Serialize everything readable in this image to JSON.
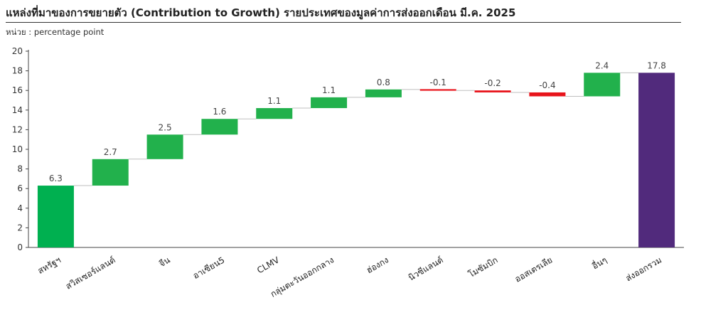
{
  "header": {
    "title": "แหล่งที่มาของการขยายตัว (Contribution to Growth) รายประเทศของมูลค่าการส่งออกเดือน มี.ค. 2025",
    "unit": "หน่วย : percentage point"
  },
  "chart_data": {
    "type": "bar",
    "subtype": "waterfall",
    "title": "แหล่งที่มาของการขยายตัว (Contribution to Growth) รายประเทศของมูลค่าการส่งออกเดือน มี.ค. 2025",
    "ylabel": "",
    "xlabel": "",
    "ylim": [
      0,
      20
    ],
    "yticks": [
      0,
      2,
      4,
      6,
      8,
      10,
      12,
      14,
      16,
      18,
      20
    ],
    "grid": false,
    "categories": [
      "สหรัฐฯ",
      "สวิสเซอร์แลนด์",
      "จีน",
      "อาเซียน5",
      "CLMV",
      "กลุ่มตะวันออกกลาง",
      "ฮ่องกง",
      "นิวซีแลนด์",
      "โมซัมบิก",
      "ออสเตรเลีย",
      "อื่นๆ",
      "ส่งออกรวม"
    ],
    "values": [
      6.3,
      2.7,
      2.5,
      1.6,
      1.1,
      1.1,
      0.8,
      -0.1,
      -0.2,
      -0.4,
      2.4,
      17.8
    ],
    "labels": [
      "6.3",
      "2.7",
      "2.5",
      "1.6",
      "1.1",
      "1.1",
      "0.8",
      "-0.1",
      "-0.2",
      "-0.4",
      "2.4",
      "17.8"
    ],
    "is_total": [
      false,
      false,
      false,
      false,
      false,
      false,
      false,
      false,
      false,
      false,
      false,
      true
    ],
    "colors": {
      "increase": "#22b14c",
      "first": "#00b050",
      "decrease": "#e8141b",
      "total": "#512a7c",
      "connector": "#bfbfbf"
    }
  }
}
